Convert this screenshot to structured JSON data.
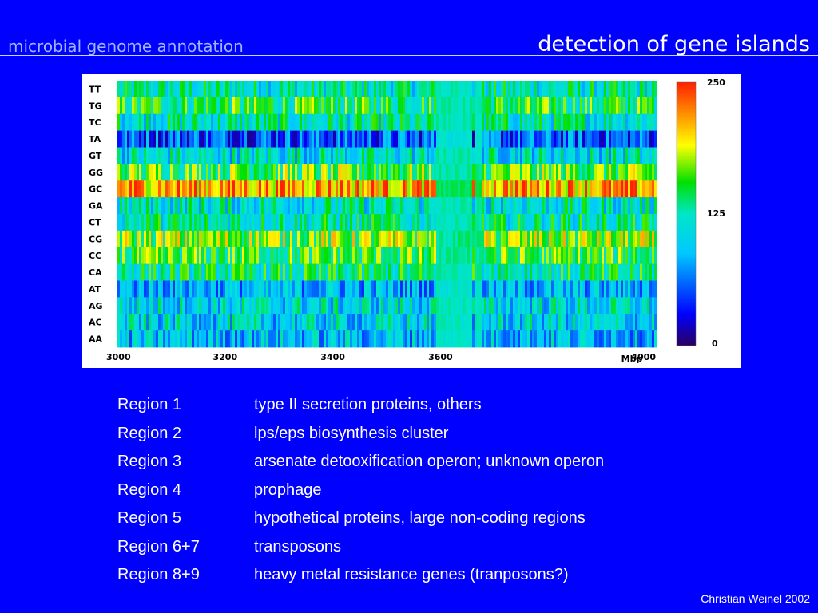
{
  "header": {
    "left_title": "microbial genome annotation",
    "right_title": "detection of gene islands"
  },
  "chart_data": {
    "type": "heatmap",
    "rows": [
      "TT",
      "TG",
      "TC",
      "TA",
      "GT",
      "GG",
      "GC",
      "GA",
      "CT",
      "CG",
      "CC",
      "CA",
      "AT",
      "AG",
      "AC",
      "AA"
    ],
    "xlim": [
      3000,
      4000
    ],
    "x_ticks": [
      "3000",
      "3200",
      "3400",
      "3600",
      "4000"
    ],
    "x_unit_label": "Mbp",
    "colorbar": {
      "min": "0",
      "mid": "125",
      "max": "250"
    },
    "row_mean_values": [
      120,
      145,
      120,
      55,
      110,
      160,
      215,
      115,
      125,
      170,
      150,
      130,
      85,
      105,
      100,
      90
    ],
    "island_ranges_x": [
      [
        3590,
        3600
      ],
      [
        3595,
        3655
      ],
      [
        3663,
        3676
      ]
    ],
    "grid": false
  },
  "colors": {
    "background": "#0000ff",
    "header_left": "#9fb6ff",
    "panel": "#ffffff"
  },
  "regions": [
    {
      "name": "Region 1",
      "desc": "type II secretion proteins, others"
    },
    {
      "name": "Region 2",
      "desc": "lps/eps biosynthesis cluster"
    },
    {
      "name": "Region 3",
      "desc": "arsenate detooxification operon; unknown operon"
    },
    {
      "name": "Region 4",
      "desc": "prophage"
    },
    {
      "name": "Region 5",
      "desc": "hypothetical proteins, large non-coding regions"
    },
    {
      "name": "Region 6+7",
      "desc": "transposons"
    },
    {
      "name": "Region 8+9",
      "desc": "heavy metal resistance genes (tranposons?)"
    }
  ],
  "footer": {
    "credit": "Christian Weinel 2002"
  }
}
